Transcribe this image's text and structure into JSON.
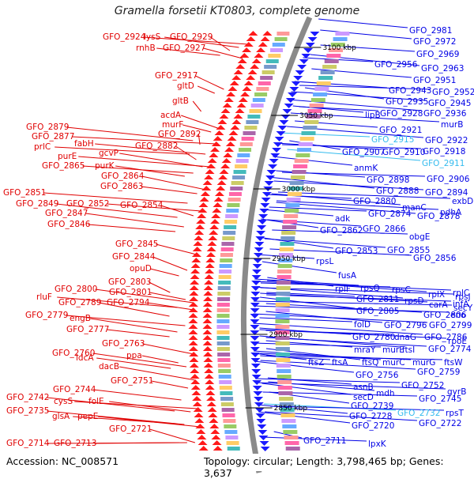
{
  "title": "Gramella forsetii KT0803, complete genome",
  "footer": {
    "accession": "Accession: NC_008571",
    "topology": "Topology: circular; Length: 3,798,465 bp; Genes: 3,637"
  },
  "colors": {
    "left_labels": "#e00000",
    "right_labels": "#0000e6",
    "highlight_labels": "#33bbee",
    "backbone": "#8a8a8a",
    "forward_strand": "#ff1a1a",
    "reverse_strand": "#1a1aff"
  },
  "scale_marks": [
    "3100 kbp",
    "3050 kbp",
    "3000 kbp",
    "2950 kbp",
    "2900 kbp",
    "2850 kbp"
  ],
  "left_labels": [
    "GFO_2924",
    "lysS",
    "GFO_2929",
    "rnhB",
    "GFO_2927",
    "GFO_2917",
    "gltD",
    "gltB",
    "acdA",
    "murF",
    "GFO_2892",
    "GFO_2879",
    "GFO_2877",
    "fabH",
    "GFO_2882",
    "prlC",
    "purE",
    "gcvP",
    "GFO_2865",
    "purK",
    "GFO_2864",
    "GFO_2863",
    "GFO_2851",
    "GFO_2849",
    "GFO_2852",
    "GFO_2854",
    "GFO_2847",
    "GFO_2846",
    "GFO_2845",
    "GFO_2844",
    "opuD",
    "GFO_2803",
    "GFO_2800",
    "GFO_2801",
    "rluF",
    "GFO_2789",
    "GFO_2794",
    "GFO_2779",
    "engB",
    "GFO_2777",
    "GFO_2763",
    "GFO_2760",
    "ppa",
    "ldcA",
    "dacB",
    "GFO_2751",
    "GFO_2744",
    "GFO_2742",
    "cysS",
    "folE",
    "GFO_2735",
    "glsA",
    "pepE",
    "GFO_2721",
    "GFO_2714",
    "GFO_2713"
  ],
  "right_labels": [
    "GFO_2981",
    "GFO_2972",
    "GFO_2969",
    "GFO_2956",
    "GFO_2963",
    "GFO_2951",
    "GFO_2943",
    "GFO_2952",
    "GFO_2935",
    "GFO_2945",
    "lipB",
    "GFO_2928",
    "GFO_2936",
    "murB",
    "GFO_2921",
    "GFO_2915",
    "GFO_2922",
    "GFO_2907",
    "GFO_2910",
    "GFO_2918",
    "GFO_2911",
    "anmK",
    "GFO_2898",
    "GFO_2906",
    "GFO_2888",
    "GFO_2894",
    "exbD",
    "GFO_2880",
    "manC",
    "pdhA",
    "adk",
    "GFO_2874",
    "GFO_2878",
    "GFO_2862",
    "GFO_2866",
    "obgE",
    "GFO_2853",
    "GFO_2855",
    "GFO_2856",
    "rpsL",
    "fusA",
    "rplF",
    "rpsQ",
    "rpsC",
    "rplX",
    "rplC",
    "rpsJ",
    "GFO_2811",
    "rpsD",
    "carA",
    "infA",
    "secY",
    "GFO_2805",
    "GFO_2806",
    "eno",
    "folD",
    "GFO_2796",
    "GFO_2799",
    "GFO_2780",
    "dnaG",
    "GFO_2786",
    "rpoE",
    "mraY",
    "murE",
    "ftsI",
    "GFO_2774",
    "ftsZ",
    "ftsA",
    "ftsQ",
    "murC",
    "murG",
    "ftsW",
    "GFO_2756",
    "GFO_2759",
    "asnB",
    "GFO_2752",
    "secD",
    "mdh",
    "gyrB",
    "GFO_2745",
    "GFO_2739",
    "GFO_2728",
    "GFO_2732",
    "rpsT",
    "GFO_2720",
    "GFO_2722",
    "GFO_2711",
    "lpxK"
  ],
  "highlight_right_labels": [
    "GFO_2915",
    "GFO_2911",
    "GFO_2732"
  ]
}
